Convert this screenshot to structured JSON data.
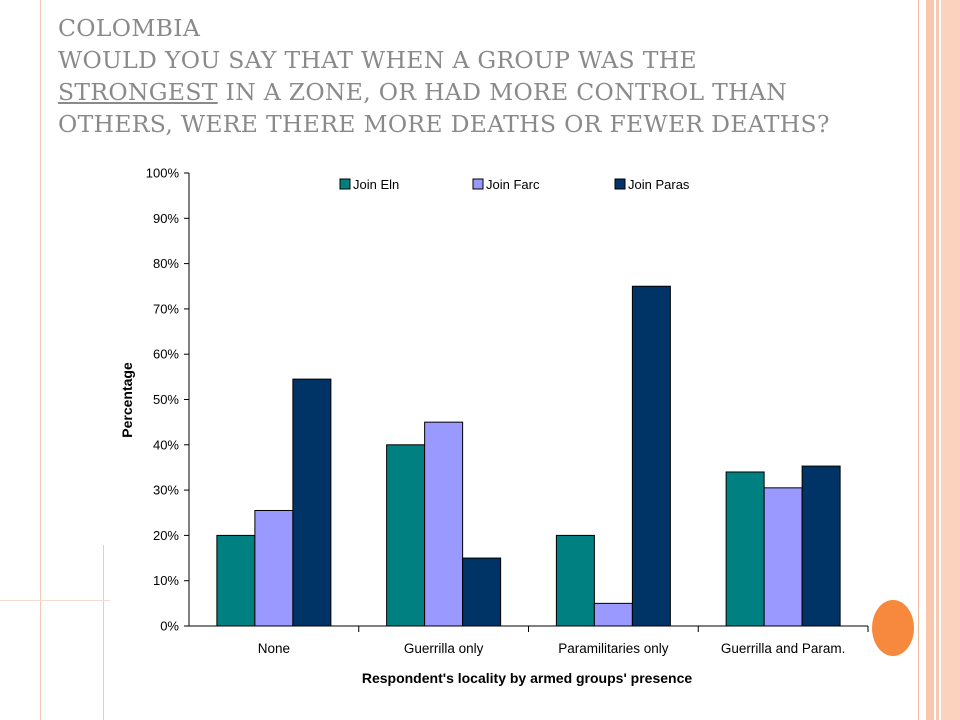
{
  "slide": {
    "title_lines": [
      "COLOMBIA",
      "WOULD YOU SAY THAT WHEN A GROUP WAS THE",
      "IN A ZONE, OR HAD MORE CONTROL THAN",
      "OTHERS, WERE THERE MORE DEATHS OR FEWER DEATHS?"
    ],
    "title_underlined_word": "STRONGEST",
    "colors": {
      "title": "#8a8a8a",
      "accent_stripe": "#f9c6ae",
      "accent_dot": "#f7893e"
    }
  },
  "chart_data": {
    "type": "bar",
    "title": "",
    "xlabel": "Respondent's locality by armed groups' presence",
    "ylabel": "Percentage",
    "categories": [
      "None",
      "Guerrilla only",
      "Paramilitaries only",
      "Guerrilla and Param."
    ],
    "series": [
      {
        "name": "Join Eln",
        "color": "#008080",
        "values": [
          20,
          40,
          20,
          34
        ]
      },
      {
        "name": "Join Farc",
        "color": "#9999ff",
        "values": [
          25.5,
          45,
          5,
          30.5
        ]
      },
      {
        "name": "Join Paras",
        "color": "#003366",
        "values": [
          54.5,
          15,
          75,
          35.3
        ]
      }
    ],
    "ylim": [
      0,
      100
    ],
    "y_ticks": [
      "0%",
      "10%",
      "20%",
      "30%",
      "40%",
      "50%",
      "60%",
      "70%",
      "80%",
      "90%",
      "100%"
    ],
    "grid": false,
    "legend": "top"
  }
}
